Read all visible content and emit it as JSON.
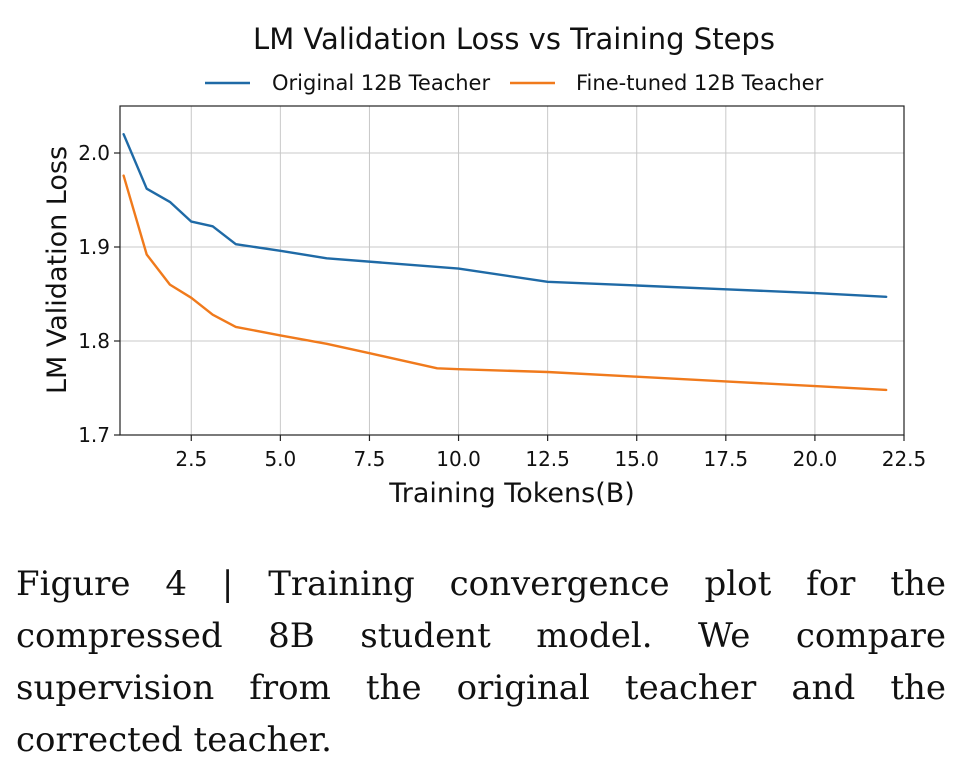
{
  "chart_data": {
    "type": "line",
    "title": "LM Validation Loss vs Training Steps",
    "xlabel": "Training Tokens(B)",
    "ylabel": "LM Validation Loss",
    "xlim": [
      0.5,
      22.5
    ],
    "ylim": [
      1.7,
      2.05
    ],
    "xticks": [
      2.5,
      5.0,
      7.5,
      10.0,
      12.5,
      15.0,
      17.5,
      20.0,
      22.5
    ],
    "xtick_labels": [
      "2.5",
      "5.0",
      "7.5",
      "10.0",
      "12.5",
      "15.0",
      "17.5",
      "20.0",
      "22.5"
    ],
    "yticks": [
      1.7,
      1.8,
      1.9,
      2.0
    ],
    "ytick_labels": [
      "1.7",
      "1.8",
      "1.9",
      "2.0"
    ],
    "grid": true,
    "legend_position": "top-center",
    "series": [
      {
        "name": "Original 12B Teacher",
        "color": "#1f6aa6",
        "x": [
          0.6,
          1.25,
          1.9,
          2.5,
          3.1,
          3.75,
          5.0,
          6.3,
          10.0,
          12.5,
          15.0,
          17.5,
          20.0,
          22.0
        ],
        "y": [
          2.02,
          1.962,
          1.948,
          1.927,
          1.922,
          1.903,
          1.896,
          1.888,
          1.877,
          1.863,
          1.859,
          1.855,
          1.851,
          1.847
        ]
      },
      {
        "name": "Fine-tuned 12B Teacher",
        "color": "#f07a1c",
        "x": [
          0.6,
          1.25,
          1.9,
          2.5,
          3.1,
          3.75,
          5.0,
          6.3,
          7.5,
          9.4,
          10.0,
          12.5,
          15.0,
          17.5,
          20.0,
          22.0
        ],
        "y": [
          1.976,
          1.892,
          1.86,
          1.846,
          1.828,
          1.815,
          1.806,
          1.797,
          1.787,
          1.771,
          1.77,
          1.767,
          1.762,
          1.757,
          1.752,
          1.748
        ]
      }
    ]
  },
  "caption": "Figure 4 | Training convergence plot for the compressed 8B student model. We compare supervision from the original teacher and the corrected teacher."
}
